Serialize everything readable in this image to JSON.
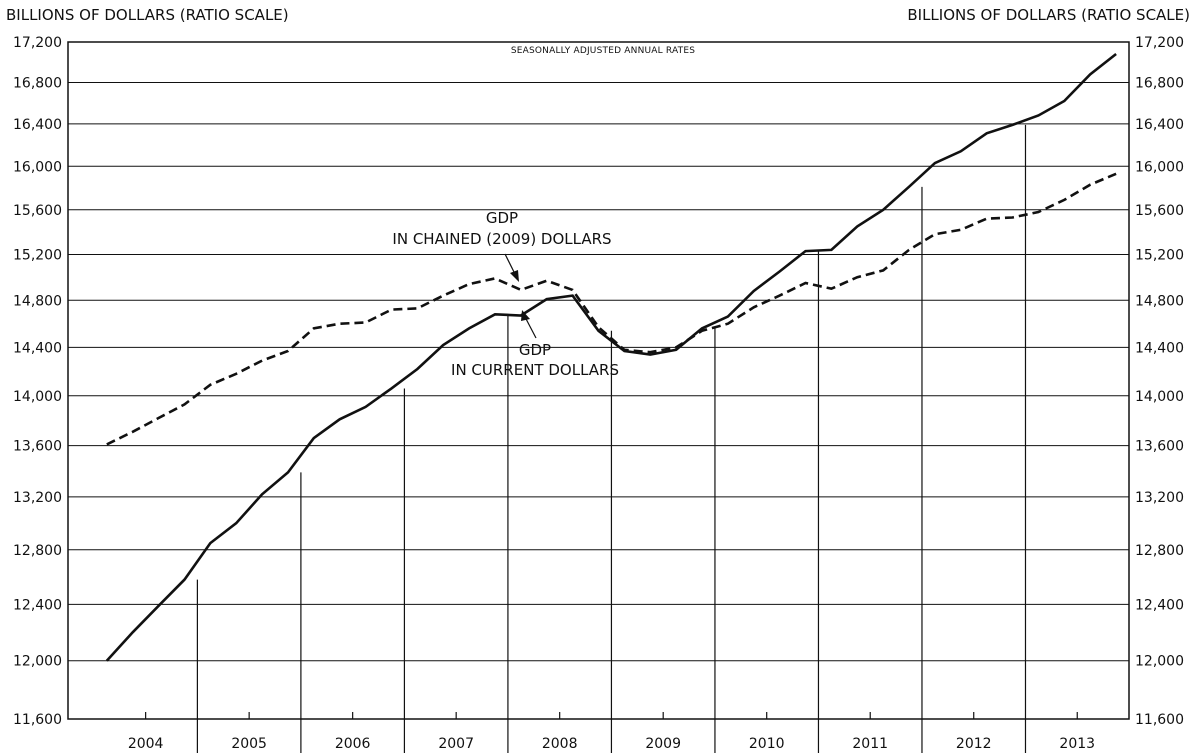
{
  "chart_data": {
    "type": "line",
    "note": "SEASONALLY ADJUSTED ANNUAL RATES",
    "ylabel_left": "BILLIONS OF DOLLARS (RATIO SCALE)",
    "ylabel_right": "BILLIONS OF DOLLARS (RATIO SCALE)",
    "yscale": "log",
    "ylim": [
      11600,
      17200
    ],
    "yticks": [
      11600,
      12000,
      12400,
      12800,
      13200,
      13600,
      14000,
      14400,
      14800,
      15200,
      15600,
      16000,
      16400,
      16800,
      17200
    ],
    "ytick_labels": [
      "11,600",
      "12,000",
      "12,400",
      "12,800",
      "13,200",
      "13,600",
      "14,000",
      "14,400",
      "14,800",
      "15,200",
      "15,600",
      "16,000",
      "16,400",
      "16,800",
      "17,200"
    ],
    "years": [
      "2004",
      "2005",
      "2006",
      "2007",
      "2008",
      "2009",
      "2010",
      "2011",
      "2012",
      "2013"
    ],
    "x": [
      "2004Q1",
      "2004Q2",
      "2004Q3",
      "2004Q4",
      "2005Q1",
      "2005Q2",
      "2005Q3",
      "2005Q4",
      "2006Q1",
      "2006Q2",
      "2006Q3",
      "2006Q4",
      "2007Q1",
      "2007Q2",
      "2007Q3",
      "2007Q4",
      "2008Q1",
      "2008Q2",
      "2008Q3",
      "2008Q4",
      "2009Q1",
      "2009Q2",
      "2009Q3",
      "2009Q4",
      "2010Q1",
      "2010Q2",
      "2010Q3",
      "2010Q4",
      "2011Q1",
      "2011Q2",
      "2011Q3",
      "2011Q4",
      "2012Q1",
      "2012Q2",
      "2012Q3",
      "2012Q4",
      "2013Q1",
      "2013Q2",
      "2013Q3",
      "2013Q4"
    ],
    "series": [
      {
        "name": "GDP IN CURRENT DOLLARS",
        "style": "solid",
        "values": [
          12000,
          12200,
          12390,
          12580,
          12850,
          13000,
          13220,
          13390,
          13660,
          13810,
          13910,
          14060,
          14220,
          14420,
          14560,
          14680,
          14670,
          14810,
          14840,
          14540,
          14370,
          14340,
          14380,
          14560,
          14660,
          14880,
          15050,
          15230,
          15240,
          15450,
          15600,
          15810,
          16030,
          16140,
          16310,
          16390,
          16480,
          16620,
          16880,
          17080
        ]
      },
      {
        "name": "GDP IN CHAINED (2009) DOLLARS",
        "style": "dashed",
        "values": [
          13610,
          13710,
          13820,
          13930,
          14090,
          14180,
          14290,
          14370,
          14560,
          14600,
          14610,
          14720,
          14730,
          14840,
          14940,
          14990,
          14890,
          14970,
          14890,
          14570,
          14380,
          14360,
          14400,
          14540,
          14600,
          14740,
          14840,
          14950,
          14900,
          15000,
          15060,
          15240,
          15380,
          15420,
          15520,
          15530,
          15580,
          15690,
          15830,
          15930
        ]
      }
    ],
    "annotations": [
      {
        "series": "dashed",
        "lines": [
          "GDP",
          "IN CHAINED (2009) DOLLARS"
        ]
      },
      {
        "series": "solid",
        "lines": [
          "GDP",
          "IN CURRENT DOLLARS"
        ]
      }
    ]
  }
}
